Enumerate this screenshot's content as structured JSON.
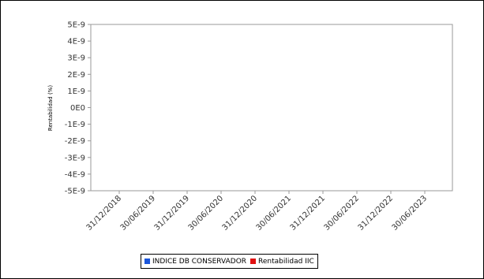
{
  "chart_data": {
    "type": "line",
    "title": "",
    "xlabel": "",
    "ylabel": "Rentabilidad (%)",
    "ylim": [
      -5e-09,
      5e-09
    ],
    "y_ticks": [
      "5E-9",
      "4E-9",
      "3E-9",
      "2E-9",
      "1E-9",
      "0E0",
      "-1E-9",
      "-2E-9",
      "-3E-9",
      "-4E-9",
      "-5E-9"
    ],
    "x_ticks": [
      "31/12/2018",
      "30/06/2019",
      "31/12/2019",
      "30/06/2020",
      "31/12/2020",
      "30/06/2021",
      "31/12/2021",
      "30/06/2022",
      "31/12/2022",
      "30/06/2023"
    ],
    "grid": false,
    "legend_position": "bottom",
    "series": [
      {
        "name": "INDICE DB CONSERVADOR",
        "color": "#1a56db",
        "values": []
      },
      {
        "name": "Rentabilidad IIC",
        "color": "#e01010",
        "values": []
      }
    ]
  }
}
